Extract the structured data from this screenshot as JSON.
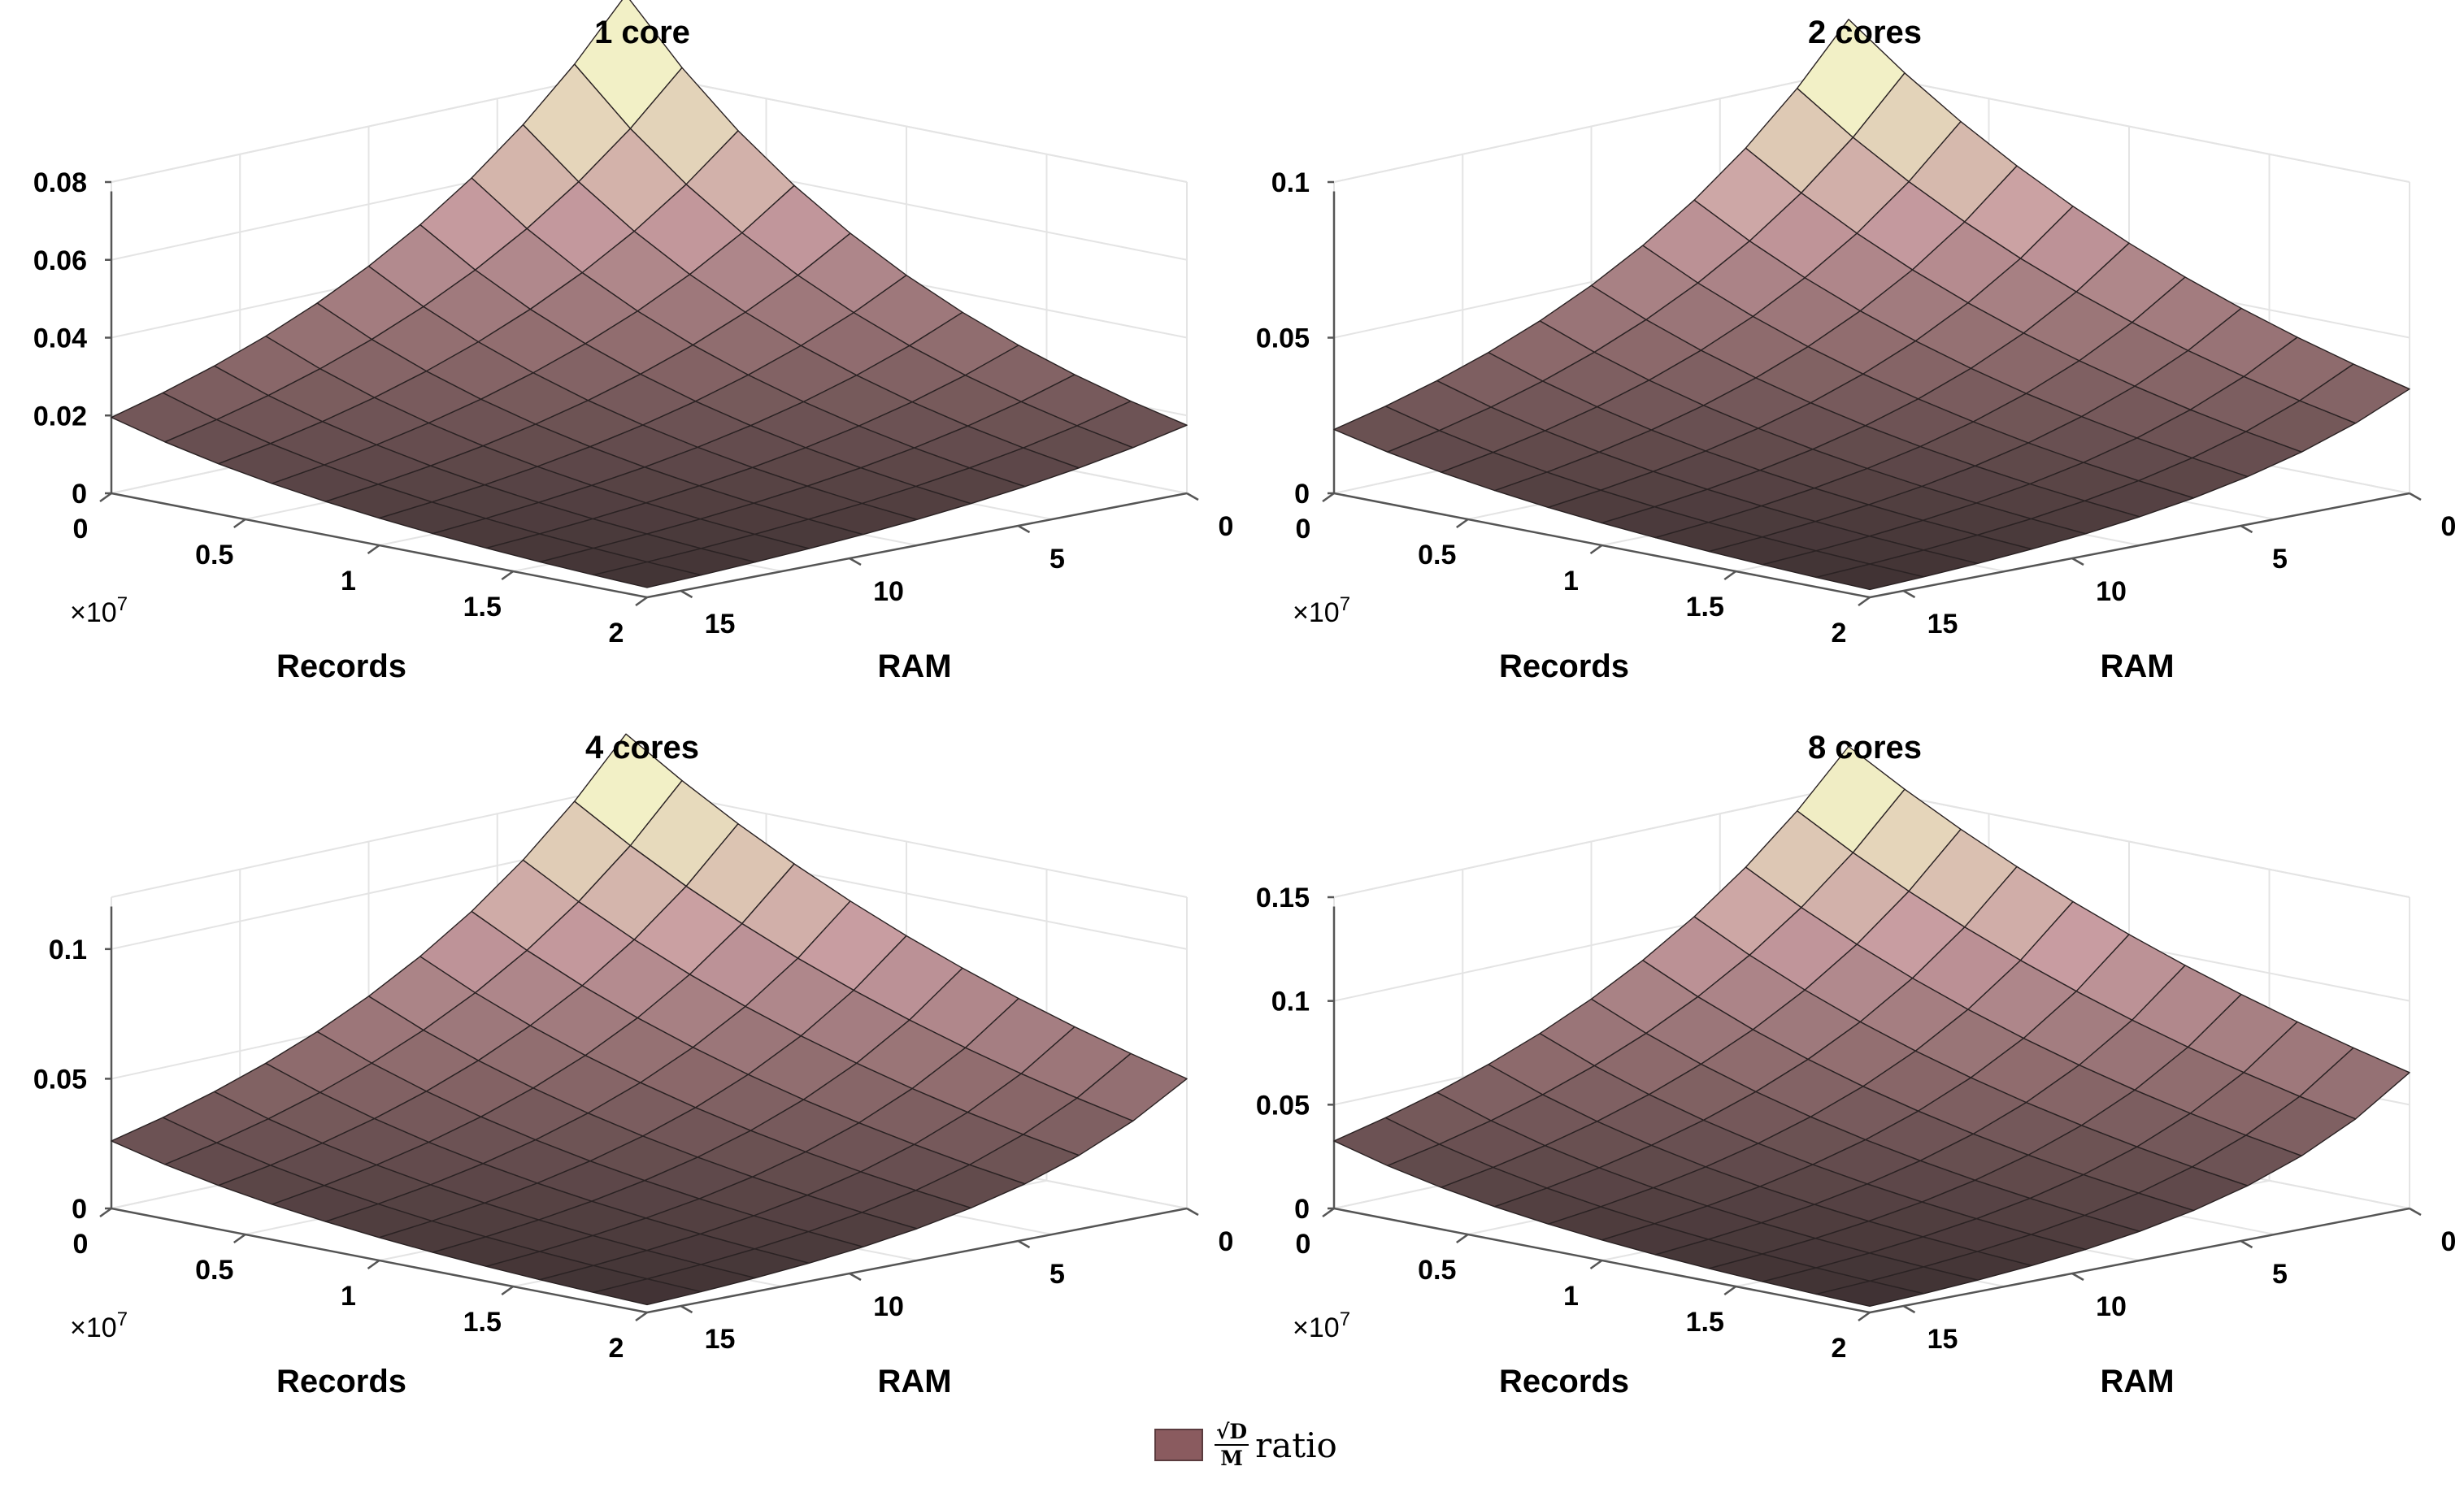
{
  "chart_data": [
    {
      "type": "surface",
      "title": "1 core",
      "xlabel": "Records",
      "ylabel": "RAM",
      "x_exponent": "×10",
      "x_exponent_power": "7",
      "xlim": [
        0,
        2
      ],
      "ylim": [
        0,
        16
      ],
      "zlim": [
        0,
        0.08
      ],
      "xticks": [
        "0",
        "0.5",
        "1",
        "1.5",
        "2"
      ],
      "yticks": [
        "0",
        "5",
        "10",
        "15"
      ],
      "zticks": [
        "0",
        "0.02",
        "0.04",
        "0.06",
        "0.08"
      ],
      "corners": {
        "records_min_ram_min": 0.0995,
        "records_max_ram_min": 0.0175,
        "records_min_ram_max": 0.0195,
        "records_max_ram_max": 0.0025
      }
    },
    {
      "type": "surface",
      "title": "2 cores",
      "xlabel": "Records",
      "ylabel": "RAM",
      "x_exponent": "×10",
      "x_exponent_power": "7",
      "xlim": [
        0,
        2
      ],
      "ylim": [
        0,
        16
      ],
      "zlim": [
        0,
        0.1
      ],
      "xticks": [
        "0",
        "0.5",
        "1",
        "1.5",
        "2"
      ],
      "yticks": [
        "0",
        "5",
        "10",
        "15"
      ],
      "zticks": [
        "0",
        "0.05",
        "0.1"
      ],
      "corners": {
        "records_min_ram_min": 0.1165,
        "records_max_ram_min": 0.0335,
        "records_min_ram_max": 0.0205,
        "records_max_ram_max": 0.0025
      }
    },
    {
      "type": "surface",
      "title": "4 cores",
      "xlabel": "Records",
      "ylabel": "RAM",
      "x_exponent": "×10",
      "x_exponent_power": "7",
      "xlim": [
        0,
        2
      ],
      "ylim": [
        0,
        16
      ],
      "zlim": [
        0,
        0.12
      ],
      "xticks": [
        "0",
        "0.5",
        "1",
        "1.5",
        "2"
      ],
      "yticks": [
        "0",
        "5",
        "10",
        "15"
      ],
      "zticks": [
        "0",
        "0.05",
        "0.1"
      ],
      "corners": {
        "records_min_ram_min": 0.14,
        "records_max_ram_min": 0.05,
        "records_min_ram_max": 0.026,
        "records_max_ram_max": 0.003
      }
    },
    {
      "type": "surface",
      "title": "8 cores",
      "xlabel": "Records",
      "ylabel": "RAM",
      "x_exponent": "×10",
      "x_exponent_power": "7",
      "xlim": [
        0,
        2
      ],
      "ylim": [
        0,
        16
      ],
      "zlim": [
        0,
        0.15
      ],
      "xticks": [
        "0",
        "0.5",
        "1",
        "1.5",
        "2"
      ],
      "yticks": [
        "0",
        "5",
        "10",
        "15"
      ],
      "zticks": [
        "0",
        "0.05",
        "0.1",
        "0.15"
      ],
      "corners": {
        "records_min_ram_min": 0.169,
        "records_max_ram_min": 0.0655,
        "records_min_ram_max": 0.0325,
        "records_max_ram_max": 0.003
      }
    }
  ],
  "legend": {
    "numerator": "√D",
    "denominator": "M",
    "label": "ratio",
    "color": "#8a5b5f"
  },
  "colors": {
    "surface_low": "#3a2e2f",
    "surface_mid": "#8d6a6c",
    "surface_pink": "#c79ba0",
    "surface_high": "#f2f0c6",
    "mesh": "#2a2223",
    "grid": "#e4e4e4",
    "axis": "#555555"
  }
}
